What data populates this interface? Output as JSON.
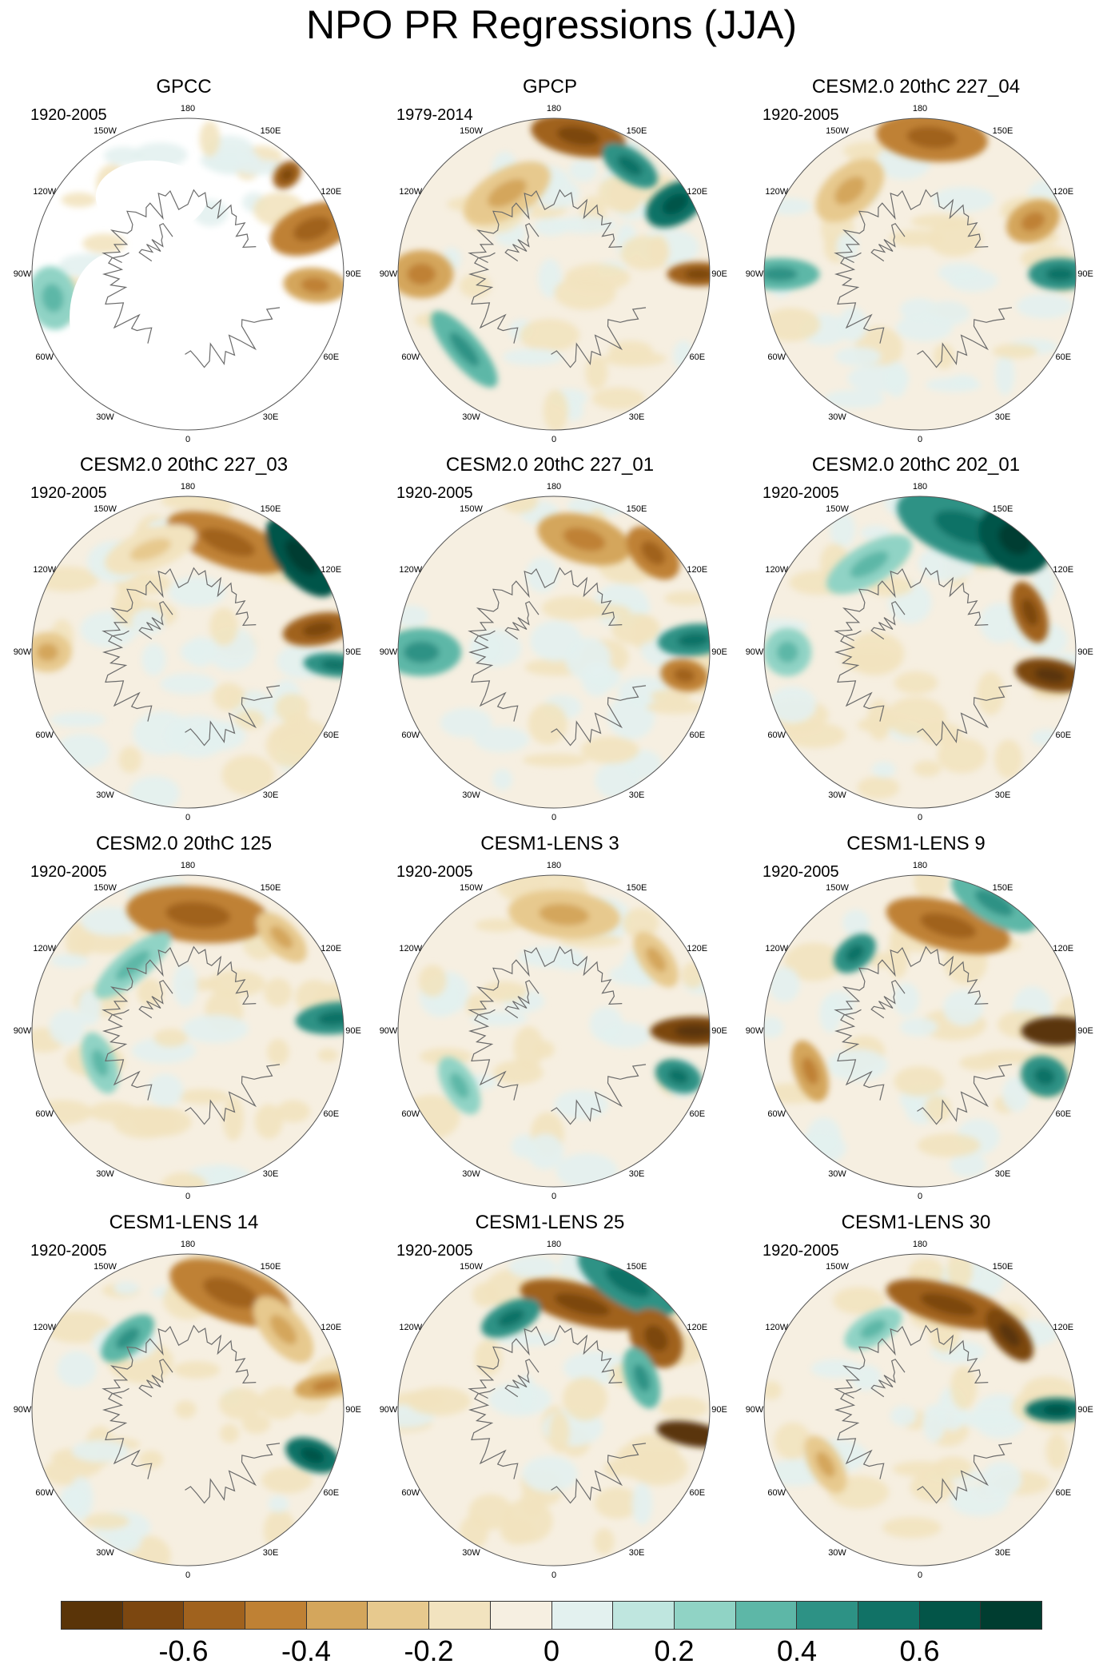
{
  "title": "NPO PR Regressions (JJA)",
  "lon_labels": [
    "180",
    "150E",
    "120E",
    "90E",
    "60E",
    "30E",
    "0",
    "30W",
    "60W",
    "90W",
    "120W",
    "150W"
  ],
  "panels": [
    {
      "title": "GPCC",
      "period": "1920-2005"
    },
    {
      "title": "GPCP",
      "period": "1979-2014"
    },
    {
      "title": "CESM2.0 20thC 227_04",
      "period": "1920-2005"
    },
    {
      "title": "CESM2.0 20thC 227_03",
      "period": "1920-2005"
    },
    {
      "title": "CESM2.0 20thC 227_01",
      "period": "1920-2005"
    },
    {
      "title": "CESM2.0 20thC 202_01",
      "period": "1920-2005"
    },
    {
      "title": "CESM2.0 20thC 125",
      "period": "1920-2005"
    },
    {
      "title": "CESM1-LENS 3",
      "period": "1920-2005"
    },
    {
      "title": "CESM1-LENS 9",
      "period": "1920-2005"
    },
    {
      "title": "CESM1-LENS 14",
      "period": "1920-2005"
    },
    {
      "title": "CESM1-LENS 25",
      "period": "1920-2005"
    },
    {
      "title": "CESM1-LENS 30",
      "period": "1920-2005"
    }
  ],
  "colorbar": {
    "colors": [
      "#5a3408",
      "#7c4710",
      "#a0621e",
      "#bf8134",
      "#d4a65c",
      "#e7c98e",
      "#f2e3bf",
      "#f6efe1",
      "#e3f1ef",
      "#bfe6df",
      "#90d3c5",
      "#5db7a7",
      "#2d9285",
      "#117266",
      "#035548",
      "#003d30"
    ],
    "tick_labels": [
      "-0.6",
      "-0.4",
      "-0.2",
      "0",
      "0.2",
      "0.4",
      "0.6"
    ]
  }
}
